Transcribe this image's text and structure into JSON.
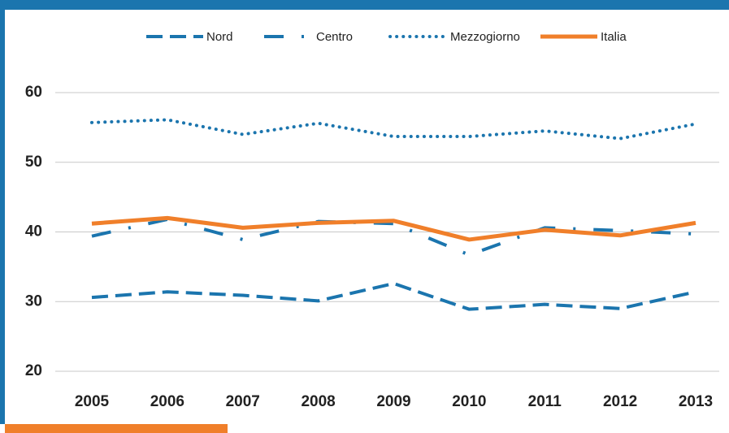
{
  "chart_data": {
    "type": "line",
    "x": [
      "2005",
      "2006",
      "2007",
      "2008",
      "2009",
      "2010",
      "2011",
      "2012",
      "2013"
    ],
    "series": [
      {
        "name": "Nord",
        "color": "#1b75ae",
        "dash": "dashed",
        "values": [
          30.6,
          31.4,
          30.9,
          30.1,
          32.6,
          28.9,
          29.6,
          29.0,
          31.4
        ]
      },
      {
        "name": "Centro",
        "color": "#1b75ae",
        "dash": "dashdot",
        "values": [
          39.4,
          41.8,
          38.9,
          41.5,
          41.2,
          36.7,
          40.6,
          40.2,
          39.7
        ]
      },
      {
        "name": "Mezzogiorno",
        "color": "#1b75ae",
        "dash": "dotted",
        "values": [
          55.7,
          56.1,
          54.0,
          55.6,
          53.7,
          53.7,
          54.5,
          53.4,
          55.5
        ]
      },
      {
        "name": "Italia",
        "color": "#f07f2a",
        "dash": "solid",
        "values": [
          41.2,
          42.0,
          40.6,
          41.3,
          41.6,
          38.9,
          40.3,
          39.5,
          41.3
        ]
      }
    ],
    "ylim": [
      20,
      60
    ],
    "yticks": [
      20,
      30,
      40,
      50,
      60
    ],
    "grid": true,
    "legend": "top"
  }
}
